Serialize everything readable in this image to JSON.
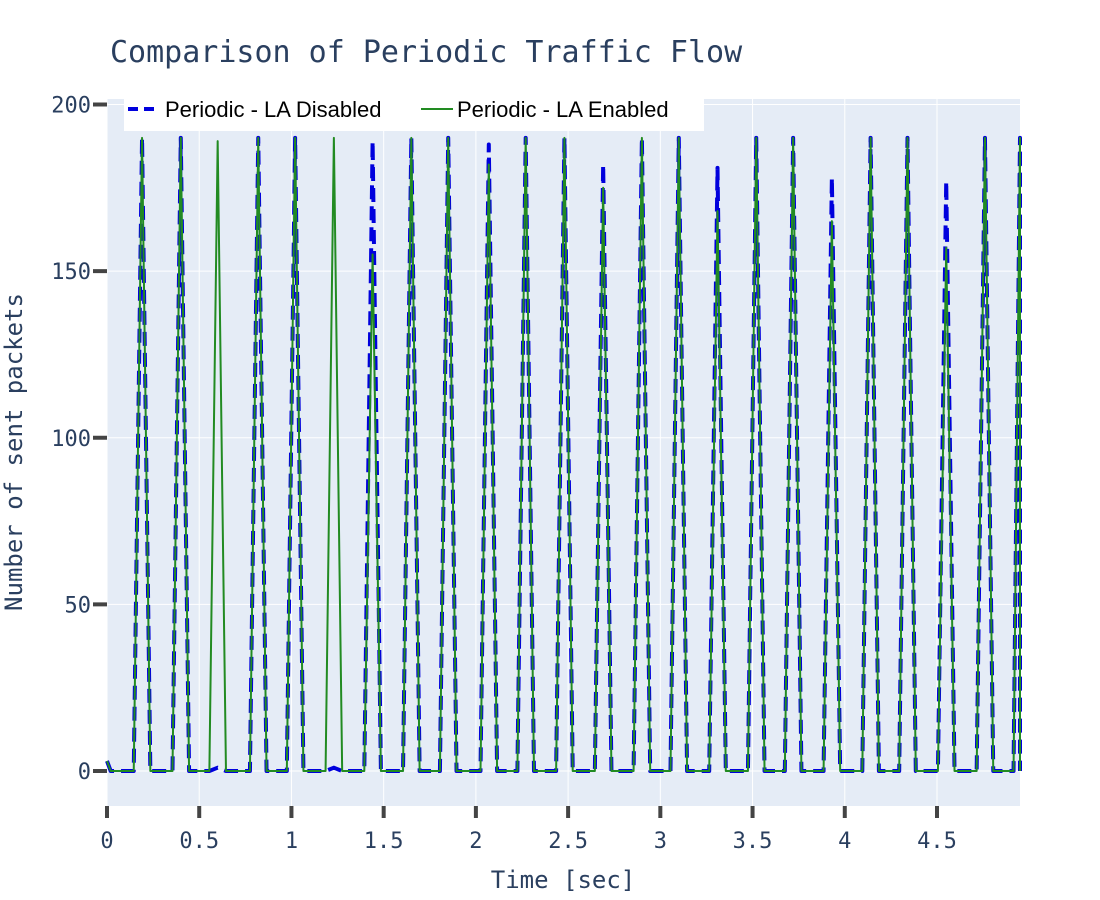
{
  "chart_data": {
    "type": "line",
    "title": "Comparison of Periodic Traffic Flow",
    "xlabel": "Time [sec]",
    "ylabel": "Number of sent packets",
    "xlim": [
      0,
      4.95
    ],
    "ylim": [
      -10,
      200
    ],
    "x_ticks": [
      0,
      0.5,
      1,
      1.5,
      2,
      2.5,
      3,
      3.5,
      4,
      4.5
    ],
    "x_tick_labels": [
      "0",
      "0.5",
      "1",
      "1.5",
      "2",
      "2.5",
      "3",
      "3.5",
      "4",
      "4.5"
    ],
    "y_ticks": [
      0,
      50,
      100,
      150,
      200
    ],
    "y_tick_labels": [
      "0",
      "50",
      "100",
      "150",
      "200"
    ],
    "grid": true,
    "legend_position": "top-left",
    "background_color": "#e5ecf6",
    "series": [
      {
        "name": "Periodic - LA Disabled",
        "color": "#0000dd",
        "dash": "dash",
        "peaks": [
          {
            "x": 0.19,
            "y": 190
          },
          {
            "x": 0.4,
            "y": 190
          },
          {
            "x": 0.6,
            "y": 1
          },
          {
            "x": 0.82,
            "y": 190
          },
          {
            "x": 1.02,
            "y": 190
          },
          {
            "x": 1.23,
            "y": 1
          },
          {
            "x": 1.44,
            "y": 189
          },
          {
            "x": 1.65,
            "y": 190
          },
          {
            "x": 1.85,
            "y": 190
          },
          {
            "x": 2.07,
            "y": 188
          },
          {
            "x": 2.27,
            "y": 190
          },
          {
            "x": 2.48,
            "y": 190
          },
          {
            "x": 2.69,
            "y": 182
          },
          {
            "x": 2.9,
            "y": 190
          },
          {
            "x": 3.1,
            "y": 190
          },
          {
            "x": 3.31,
            "y": 181
          },
          {
            "x": 3.52,
            "y": 190
          },
          {
            "x": 3.72,
            "y": 190
          },
          {
            "x": 3.93,
            "y": 178
          },
          {
            "x": 4.14,
            "y": 190
          },
          {
            "x": 4.34,
            "y": 190
          },
          {
            "x": 4.55,
            "y": 177
          },
          {
            "x": 4.76,
            "y": 190
          },
          {
            "x": 4.96,
            "y": 190
          }
        ]
      },
      {
        "name": "Periodic - LA Enabled",
        "color": "#228b22",
        "dash": "solid",
        "peaks": [
          {
            "x": 0.19,
            "y": 190
          },
          {
            "x": 0.4,
            "y": 190
          },
          {
            "x": 0.6,
            "y": 189
          },
          {
            "x": 0.82,
            "y": 190
          },
          {
            "x": 1.02,
            "y": 190
          },
          {
            "x": 1.23,
            "y": 190
          },
          {
            "x": 1.44,
            "y": 155
          },
          {
            "x": 1.65,
            "y": 190
          },
          {
            "x": 1.85,
            "y": 190
          },
          {
            "x": 2.07,
            "y": 182
          },
          {
            "x": 2.27,
            "y": 190
          },
          {
            "x": 2.48,
            "y": 190
          },
          {
            "x": 2.69,
            "y": 175
          },
          {
            "x": 2.9,
            "y": 190
          },
          {
            "x": 3.1,
            "y": 190
          },
          {
            "x": 3.31,
            "y": 168
          },
          {
            "x": 3.52,
            "y": 190
          },
          {
            "x": 3.72,
            "y": 190
          },
          {
            "x": 3.93,
            "y": 165
          },
          {
            "x": 4.14,
            "y": 190
          },
          {
            "x": 4.34,
            "y": 190
          },
          {
            "x": 4.55,
            "y": 157
          },
          {
            "x": 4.76,
            "y": 190
          },
          {
            "x": 4.96,
            "y": 190
          }
        ]
      }
    ]
  }
}
